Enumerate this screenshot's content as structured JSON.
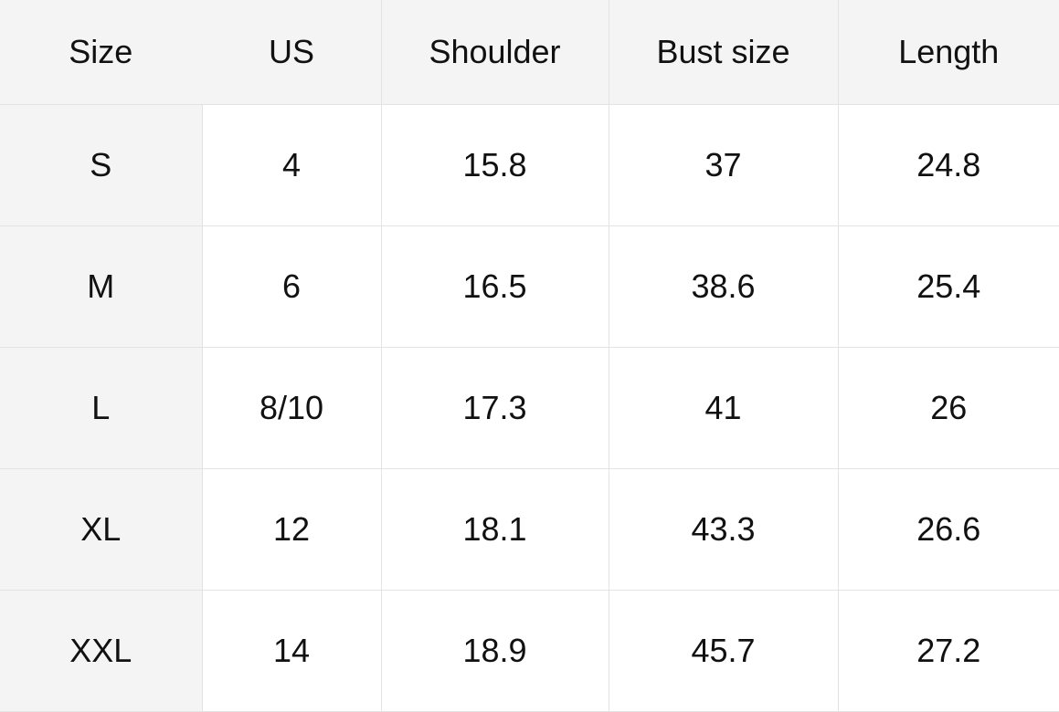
{
  "table": {
    "headers": [
      "Size",
      "US",
      "Shoulder",
      "Bust size",
      "Length"
    ],
    "rows": [
      [
        "S",
        "4",
        "15.8",
        "37",
        "24.8"
      ],
      [
        "M",
        "6",
        "16.5",
        "38.6",
        "25.4"
      ],
      [
        "L",
        "8/10",
        "17.3",
        "41",
        "26"
      ],
      [
        "XL",
        "12",
        "18.1",
        "43.3",
        "26.6"
      ],
      [
        "XXL",
        "14",
        "18.9",
        "45.7",
        "27.2"
      ]
    ]
  }
}
